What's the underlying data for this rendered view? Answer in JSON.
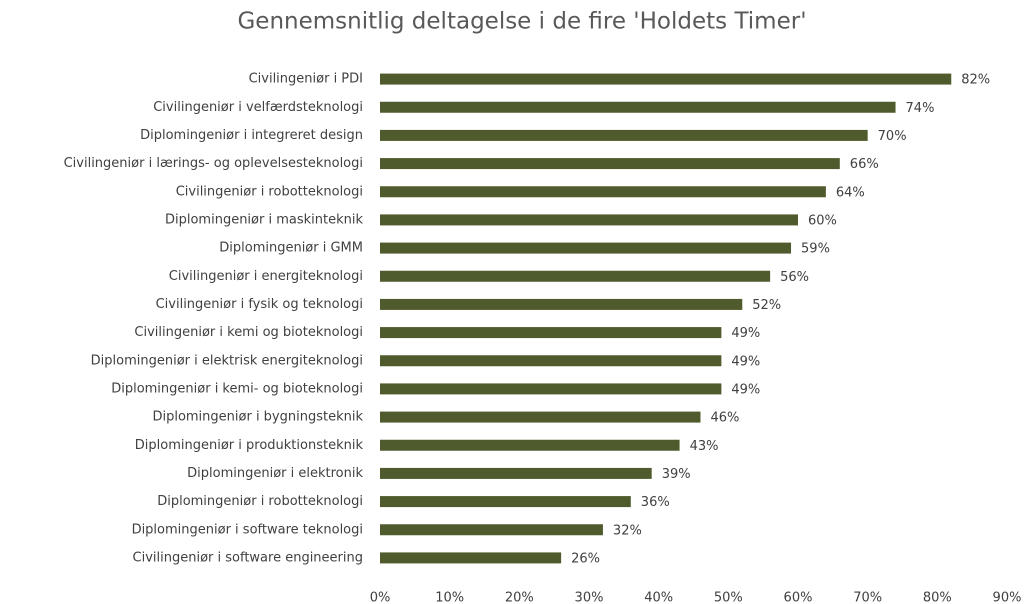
{
  "chart_data": {
    "type": "hbar",
    "title": "Gennemsnitlig deltagelse i de fire 'Holdets Timer'",
    "categories": [
      "Civilingeniør i PDI",
      "Civilingeniør i velfærdsteknologi",
      "Diplomingeniør i integreret design",
      "Civilingeniør i lærings- og oplevelsesteknologi",
      "Civilingeniør i robotteknologi",
      "Diplomingeniør i maskinteknik",
      "Diplomingeniør i GMM",
      "Civilingeniør i energiteknologi",
      "Civilingeniør i fysik og teknologi",
      "Civilingeniør i kemi og bioteknologi",
      "Diplomingeniør i elektrisk energiteknologi",
      "Diplomingeniør i kemi- og bioteknologi",
      "Diplomingeniør i bygningsteknik",
      "Diplomingeniør i produktionsteknik",
      "Diplomingeniør i elektronik",
      "Diplomingeniør i robotteknologi",
      "Diplomingeniør i software teknologi",
      "Civilingeniør i software engineering"
    ],
    "values": [
      82,
      74,
      70,
      66,
      64,
      60,
      59,
      56,
      52,
      49,
      49,
      49,
      46,
      43,
      39,
      36,
      32,
      26
    ],
    "value_labels": [
      "82%",
      "74%",
      "70%",
      "66%",
      "64%",
      "60%",
      "59%",
      "56%",
      "52%",
      "49%",
      "49%",
      "49%",
      "46%",
      "43%",
      "39%",
      "36%",
      "32%",
      "26%"
    ],
    "color": "#4f5b2c",
    "xlim": [
      0,
      90
    ],
    "xticks": [
      {
        "value": 0,
        "label": "0%"
      },
      {
        "value": 10,
        "label": "10%"
      },
      {
        "value": 20,
        "label": "20%"
      },
      {
        "value": 30,
        "label": "30%"
      },
      {
        "value": 40,
        "label": "40%"
      },
      {
        "value": 50,
        "label": "50%"
      },
      {
        "value": 60,
        "label": "60%"
      },
      {
        "value": 70,
        "label": "70%"
      },
      {
        "value": 80,
        "label": "80%"
      },
      {
        "value": 90,
        "label": "90%"
      }
    ],
    "grid": false
  }
}
